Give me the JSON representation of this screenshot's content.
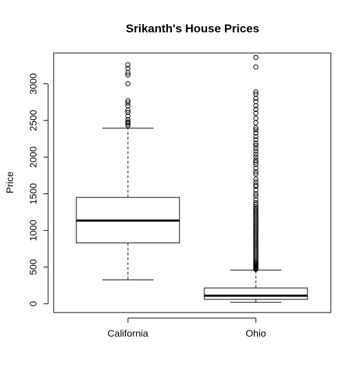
{
  "chart_data": {
    "type": "box",
    "title": "Srikanth's House Prices",
    "xlabel": "",
    "ylabel": "Price",
    "ylim": [
      -120,
      3420
    ],
    "yticks": [
      0,
      500,
      1000,
      1500,
      2000,
      2500,
      3000
    ],
    "categories": [
      "California",
      "Ohio"
    ],
    "boxes": [
      {
        "name": "California",
        "whisker_low": 325,
        "q1": 830,
        "median": 1135,
        "q3": 1450,
        "whisker_high": 2395,
        "outliers": [
          2430,
          2450,
          2470,
          2480,
          2510,
          2560,
          2610,
          2640,
          2700,
          2740,
          2770,
          3000,
          3120,
          3150,
          3210,
          3260
        ]
      },
      {
        "name": "Ohio",
        "whisker_low": 20,
        "q1": 60,
        "median": 110,
        "q3": 215,
        "whisker_high": 460,
        "outliers": [
          470,
          480,
          490,
          500,
          510,
          520,
          535,
          550,
          565,
          580,
          600,
          620,
          640,
          660,
          680,
          700,
          720,
          740,
          760,
          780,
          800,
          820,
          840,
          860,
          880,
          900,
          920,
          940,
          960,
          980,
          1000,
          1020,
          1040,
          1060,
          1080,
          1100,
          1120,
          1140,
          1160,
          1180,
          1200,
          1220,
          1240,
          1260,
          1280,
          1300,
          1320,
          1350,
          1380,
          1420,
          1470,
          1500,
          1550,
          1600,
          1620,
          1660,
          1700,
          1770,
          1800,
          1850,
          1900,
          1930,
          1960,
          2000,
          2040,
          2080,
          2120,
          2160,
          2190,
          2240,
          2280,
          2330,
          2370,
          2400,
          2470,
          2530,
          2600,
          2650,
          2700,
          2760,
          2800,
          2860,
          2890,
          3230,
          3360
        ]
      }
    ]
  }
}
